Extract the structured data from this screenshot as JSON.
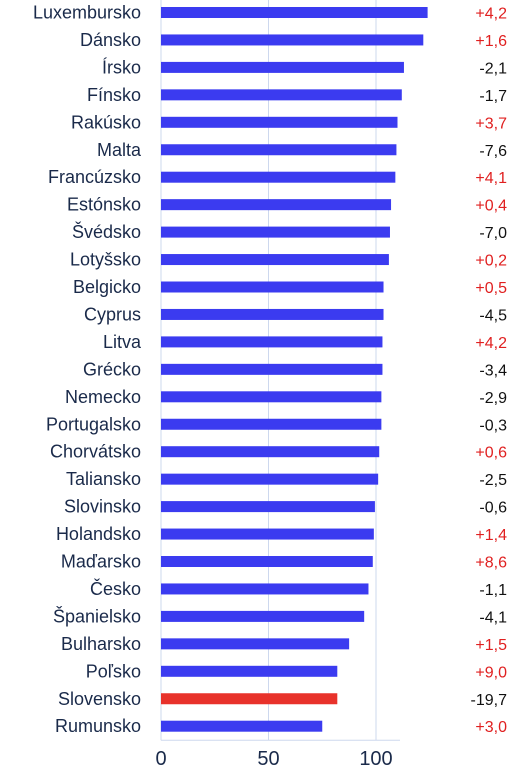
{
  "chart_data": {
    "type": "bar",
    "orientation": "horizontal",
    "categories": [
      "Luxembursko",
      "Dánsko",
      "Írsko",
      "Fínsko",
      "Rakúsko",
      "Malta",
      "Francúzsko",
      "Estónsko",
      "Švédsko",
      "Lotyšsko",
      "Belgicko",
      "Cyprus",
      "Litva",
      "Grécko",
      "Nemecko",
      "Portugalsko",
      "Chorvátsko",
      "Taliansko",
      "Slovinsko",
      "Holandsko",
      "Maďarsko",
      "Česko",
      "Španielsko",
      "Bulharsko",
      "Poľsko",
      "Slovensko",
      "Rumunsko"
    ],
    "values": [
      124,
      122,
      113,
      112,
      110,
      109.5,
      109,
      107,
      106.5,
      106,
      103.5,
      103.5,
      103,
      103,
      102.5,
      102.5,
      101.5,
      101,
      99.5,
      99,
      98.5,
      96.5,
      94.5,
      87.5,
      82,
      82,
      75
    ],
    "changes": [
      "+4,2",
      "+1,6",
      "-2,1",
      "-1,7",
      "+3,7",
      "-7,6",
      "+4,1",
      "+0,4",
      "-7,0",
      "+0,2",
      "+0,5",
      "-4,5",
      "+4,2",
      "-3,4",
      "-2,9",
      "-0,3",
      "+0,6",
      "-2,5",
      "-0,6",
      "+1,4",
      "+8,6",
      "-1,1",
      "-4,1",
      "+1,5",
      "+9,0",
      "-19,7",
      "+3,0"
    ],
    "highlight_category": "Slovensko",
    "xlim": [
      0,
      125
    ],
    "xticks": [
      "0",
      "50",
      "100"
    ],
    "grid": true,
    "colors": {
      "bar": "#3b3bf0",
      "highlight": "#e8322b",
      "positive_change": "#e02020",
      "negative_change": "#111111",
      "grid": "#cdd8ee",
      "text": "#1a2a4a"
    }
  }
}
